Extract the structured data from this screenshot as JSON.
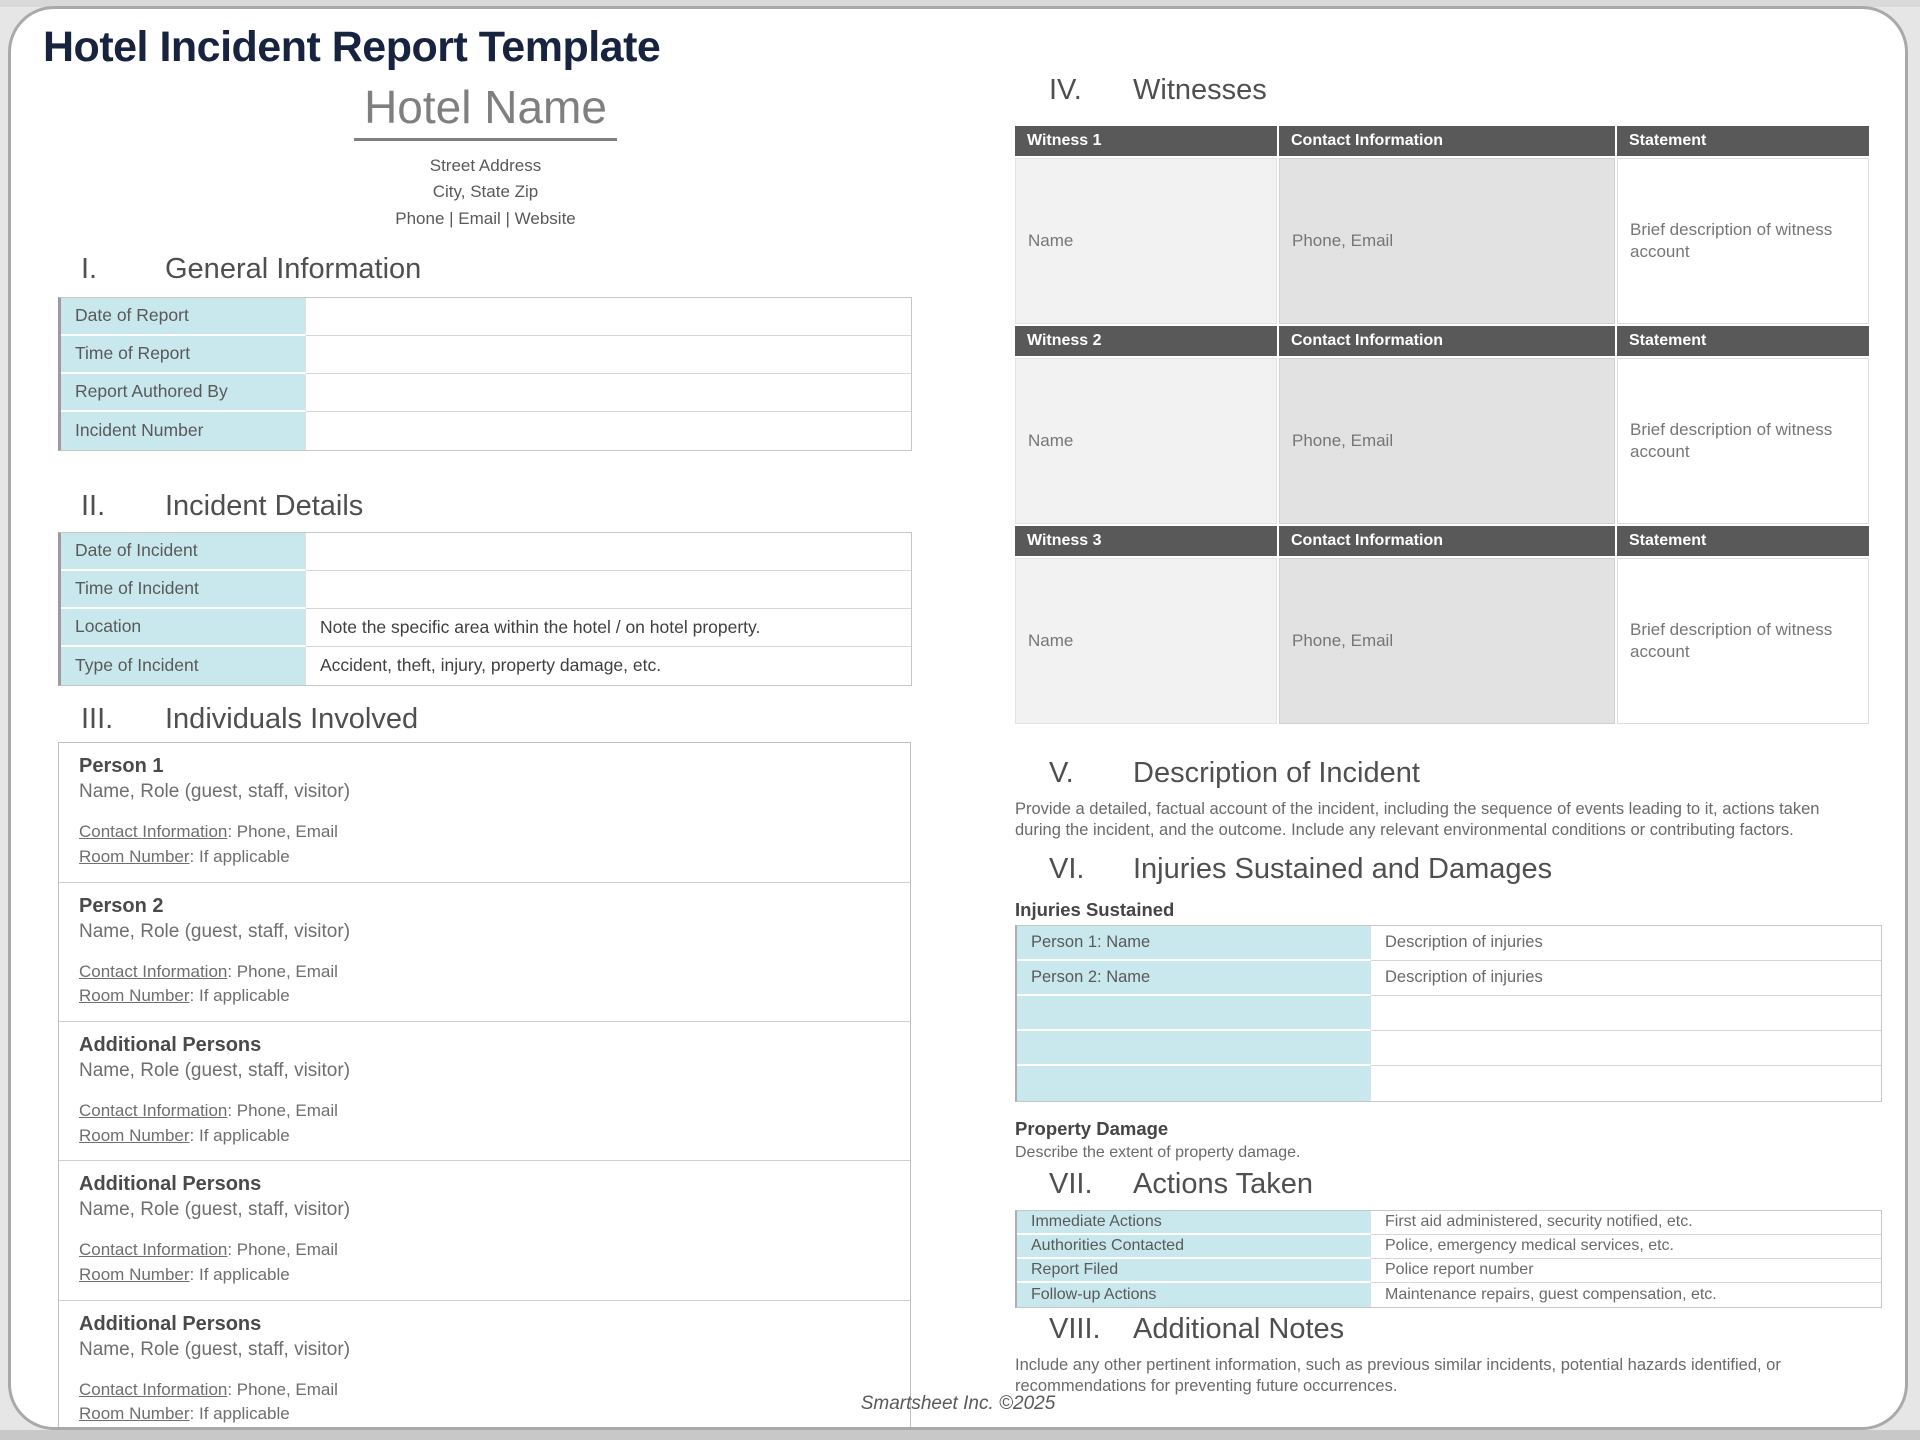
{
  "page": {
    "title": "Hotel Incident Report Template",
    "hotel_name": "Hotel Name",
    "address_line1": "Street Address",
    "address_line2": "City, State Zip",
    "address_line3": "Phone | Email | Website",
    "footer": "Smartsheet Inc. ©2025"
  },
  "colors": {
    "accent_blue": "#c9e8ee",
    "table_header_gray": "#595959",
    "title_navy": "#18233f"
  },
  "sections": {
    "general": {
      "numeral": "I.",
      "title": "General Information",
      "rows": [
        {
          "label": "Date of Report",
          "value": ""
        },
        {
          "label": "Time of Report",
          "value": ""
        },
        {
          "label": "Report Authored By",
          "value": ""
        },
        {
          "label": "Incident Number",
          "value": ""
        }
      ]
    },
    "incident": {
      "numeral": "II.",
      "title": "Incident Details",
      "rows": [
        {
          "label": "Date of Incident",
          "value": ""
        },
        {
          "label": "Time of Incident",
          "value": ""
        },
        {
          "label": "Location",
          "value": "Note the specific area within the hotel / on hotel property."
        },
        {
          "label": "Type of Incident",
          "value": "Accident, theft, injury, property damage, etc."
        }
      ]
    },
    "individuals": {
      "numeral": "III.",
      "title": "Individuals Involved",
      "persons": [
        {
          "title": "Person 1",
          "subtitle": "Name, Role (guest, staff, visitor)",
          "contact_label": "Contact Information",
          "contact_rest": ": Phone, Email",
          "room_label": "Room Number",
          "room_rest": ": If applicable"
        },
        {
          "title": "Person 2",
          "subtitle": "Name, Role (guest, staff, visitor)",
          "contact_label": "Contact Information",
          "contact_rest": ": Phone, Email",
          "room_label": "Room Number",
          "room_rest": ": If applicable"
        },
        {
          "title": "Additional Persons",
          "subtitle": "Name, Role (guest, staff, visitor)",
          "contact_label": "Contact Information",
          "contact_rest": ": Phone, Email",
          "room_label": "Room Number",
          "room_rest": ": If applicable"
        },
        {
          "title": "Additional Persons",
          "subtitle": "Name, Role (guest, staff, visitor)",
          "contact_label": "Contact Information",
          "contact_rest": ": Phone, Email",
          "room_label": "Room Number",
          "room_rest": ": If applicable"
        },
        {
          "title": "Additional Persons",
          "subtitle": "Name, Role (guest, staff, visitor)",
          "contact_label": "Contact Information",
          "contact_rest": ": Phone, Email",
          "room_label": "Room Number",
          "room_rest": ": If applicable"
        }
      ]
    },
    "witnesses": {
      "numeral": "IV.",
      "title": "Witnesses",
      "contact_header": "Contact Information",
      "statement_header": "Statement",
      "items": [
        {
          "label": "Witness 1",
          "name": "Name",
          "contact": "Phone, Email",
          "statement": "Brief description of witness account"
        },
        {
          "label": "Witness 2",
          "name": "Name",
          "contact": "Phone, Email",
          "statement": "Brief description of witness account"
        },
        {
          "label": "Witness 3",
          "name": "Name",
          "contact": "Phone, Email",
          "statement": "Brief description of witness account"
        }
      ]
    },
    "description": {
      "numeral": "V.",
      "title": "Description of Incident",
      "body": "Provide a detailed, factual account of the incident, including the sequence of events leading to it, actions taken during the incident, and the outcome. Include any relevant environmental conditions or contributing factors."
    },
    "injuries": {
      "numeral": "VI.",
      "title": "Injuries Sustained and Damages",
      "subheading": "Injuries Sustained",
      "rows": [
        {
          "label": "Person 1: Name",
          "value": "Description of injuries"
        },
        {
          "label": "Person 2: Name",
          "value": "Description of injuries"
        },
        {
          "label": "",
          "value": ""
        },
        {
          "label": "",
          "value": ""
        },
        {
          "label": "",
          "value": ""
        }
      ],
      "property_heading": "Property Damage",
      "property_body": "Describe the extent of property damage."
    },
    "actions": {
      "numeral": "VII.",
      "title": "Actions Taken",
      "rows": [
        {
          "label": "Immediate Actions",
          "value": "First aid administered, security notified, etc."
        },
        {
          "label": "Authorities Contacted",
          "value": "Police, emergency medical services, etc."
        },
        {
          "label": "Report Filed",
          "value": "Police report number"
        },
        {
          "label": "Follow-up Actions",
          "value": "Maintenance repairs, guest compensation, etc."
        }
      ]
    },
    "notes": {
      "numeral": "VIII.",
      "title": "Additional Notes",
      "body": "Include any other pertinent information, such as previous similar incidents, potential hazards identified, or recommendations for preventing future occurrences."
    }
  }
}
